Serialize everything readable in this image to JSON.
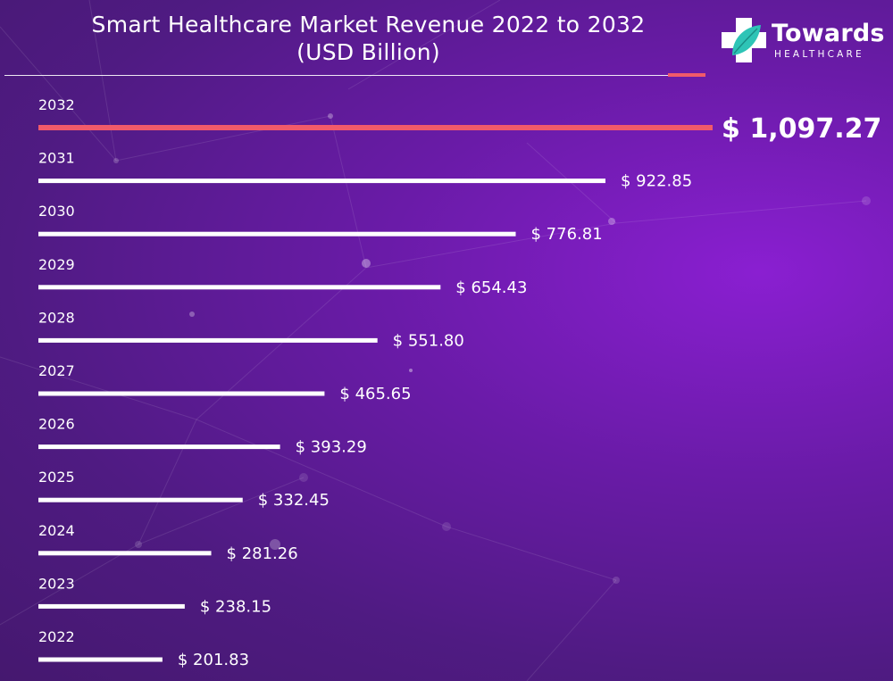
{
  "header": {
    "title_line1": "Smart Healthcare Market Revenue 2022 to 2032",
    "title_line2": "(USD Billion)"
  },
  "logo": {
    "name": "Towards",
    "tagline": "HEALTHCARE"
  },
  "colors": {
    "bar": "#ffffff",
    "highlight_bar": "#f15a6a",
    "background_start": "#45186f",
    "background_end": "#8a1fd1",
    "text": "#ffffff"
  },
  "chart_data": {
    "type": "bar",
    "orientation": "horizontal",
    "title": "Smart Healthcare Market Revenue 2022 to 2032 (USD Billion)",
    "categories": [
      "2032",
      "2031",
      "2030",
      "2029",
      "2028",
      "2027",
      "2026",
      "2025",
      "2024",
      "2023",
      "2022"
    ],
    "values": [
      1097.27,
      922.85,
      776.81,
      654.43,
      551.8,
      465.65,
      393.29,
      332.45,
      281.26,
      238.15,
      201.83
    ],
    "value_labels": [
      "$ 1,097.27",
      "$ 922.85",
      "$ 776.81",
      "$ 654.43",
      "$ 551.80",
      "$ 465.65",
      "$ 393.29",
      "$ 332.45",
      "$ 281.26",
      "$ 238.15",
      "$ 201.83"
    ],
    "highlight_category": "2032",
    "xlabel": "",
    "ylabel": "",
    "legend": "none",
    "grid": false
  }
}
